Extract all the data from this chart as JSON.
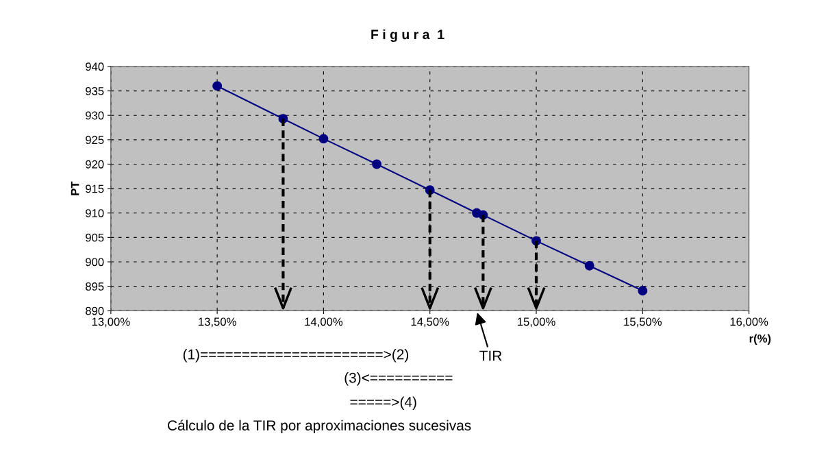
{
  "chart_data": {
    "type": "line",
    "title": "F i g u r a  1",
    "xlabel": "r(%)",
    "ylabel": "PT",
    "x": [
      13.5,
      13.81,
      14.0,
      14.25,
      14.5,
      14.72,
      14.75,
      15.0,
      15.25,
      15.5
    ],
    "series": [
      {
        "color": "#000080",
        "values": [
          936.0,
          929.3,
          925.2,
          920.0,
          914.7,
          910.0,
          909.6,
          904.3,
          899.2,
          894.1
        ]
      }
    ],
    "xlim": [
      13.0,
      16.0
    ],
    "xticks": [
      {
        "value": 13.0,
        "label": "13,00%"
      },
      {
        "value": 13.5,
        "label": "13,50%"
      },
      {
        "value": 14.0,
        "label": "14,00%"
      },
      {
        "value": 14.5,
        "label": "14,50%"
      },
      {
        "value": 15.0,
        "label": "15,00%"
      },
      {
        "value": 15.5,
        "label": "15,50%"
      },
      {
        "value": 16.0,
        "label": "16,00%"
      }
    ],
    "ylim": [
      890,
      940
    ],
    "yticks": [
      890,
      895,
      900,
      905,
      910,
      915,
      920,
      925,
      930,
      935,
      940
    ],
    "grid": true,
    "marker": "circle",
    "line_style": "solid",
    "legend": false,
    "annotations": [
      "TIR",
      "(1)======================>(2)",
      "(3)<==========",
      "=====>(4)",
      "Cálculo de la TIR por aproximaciones sucesivas"
    ]
  }
}
